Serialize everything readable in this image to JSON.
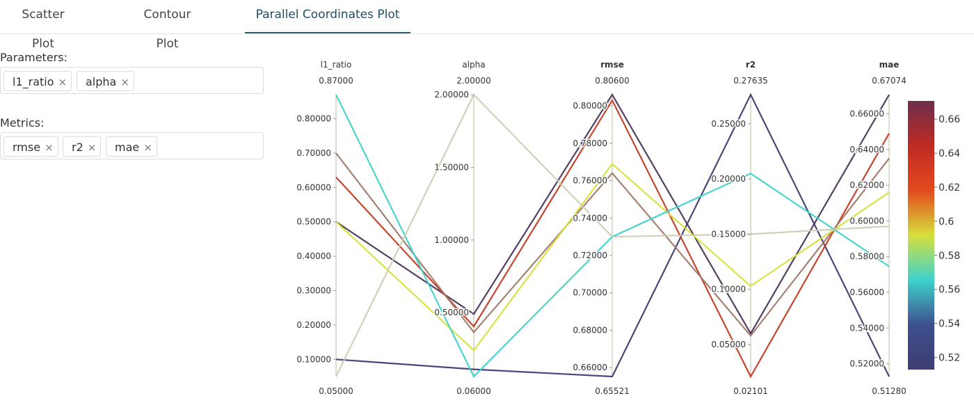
{
  "tabs": [
    {
      "label": "Scatter Plot",
      "active": false
    },
    {
      "label": "Contour Plot",
      "active": false
    },
    {
      "label": "Parallel Coordinates Plot",
      "active": true
    }
  ],
  "parameters": {
    "label": "Parameters:",
    "chips": [
      "l1_ratio",
      "alpha"
    ]
  },
  "metrics": {
    "label": "Metrics:",
    "chips": [
      "rmse",
      "r2",
      "mae"
    ]
  },
  "chart_data": {
    "type": "parallel_coordinates",
    "dimensions": [
      {
        "name": "l1_ratio",
        "bold": false,
        "range": [
          0.05,
          0.87
        ],
        "max_label": "0.87000",
        "min_label": "0.05000",
        "ticks": [
          "0.10000",
          "0.20000",
          "0.30000",
          "0.40000",
          "0.50000",
          "0.60000",
          "0.70000",
          "0.80000"
        ]
      },
      {
        "name": "alpha",
        "bold": false,
        "range": [
          0.06,
          2.0
        ],
        "max_label": "2.00000",
        "min_label": "0.06000",
        "ticks": [
          "0.50000",
          "1.00000",
          "1.50000",
          "2.00000"
        ]
      },
      {
        "name": "rmse",
        "bold": true,
        "range": [
          0.65521,
          0.806
        ],
        "max_label": "0.80600",
        "min_label": "0.65521",
        "ticks": [
          "0.66000",
          "0.68000",
          "0.70000",
          "0.72000",
          "0.74000",
          "0.76000",
          "0.78000",
          "0.80000"
        ]
      },
      {
        "name": "r2",
        "bold": true,
        "range": [
          0.02101,
          0.27635
        ],
        "max_label": "0.27635",
        "min_label": "0.02101",
        "ticks": [
          "0.05000",
          "0.10000",
          "0.15000",
          "0.20000",
          "0.25000"
        ]
      },
      {
        "name": "mae",
        "bold": true,
        "range": [
          0.5128,
          0.67074
        ],
        "max_label": "0.67074",
        "min_label": "0.51280",
        "ticks": [
          "0.52000",
          "0.54000",
          "0.56000",
          "0.58000",
          "0.60000",
          "0.62000",
          "0.64000",
          "0.66000"
        ]
      }
    ],
    "lines": [
      {
        "values": [
          0.1,
          0.11,
          0.65521,
          0.27635,
          0.5128
        ],
        "color": "#3f3d72"
      },
      {
        "values": [
          0.5,
          0.49,
          0.806,
          0.06,
          0.67074
        ],
        "color": "#4a3558"
      },
      {
        "values": [
          0.63,
          0.405,
          0.803,
          0.02101,
          0.649
        ],
        "color": "#c43a22"
      },
      {
        "values": [
          0.7,
          0.365,
          0.764,
          0.058,
          0.635
        ],
        "color": "#a07868"
      },
      {
        "values": [
          0.5,
          0.24,
          0.769,
          0.103,
          0.616
        ],
        "color": "#d6e03c"
      },
      {
        "values": [
          0.87,
          0.06,
          0.73,
          0.205,
          0.5745
        ],
        "color": "#3fd2cc"
      },
      {
        "values": [
          0.05,
          2.0,
          0.73,
          0.15,
          0.597
        ],
        "color": "#cfcdb4"
      }
    ],
    "colorbar": {
      "ticks": [
        "0.52",
        "0.54",
        "0.56",
        "0.58",
        "0.6",
        "0.62",
        "0.64",
        "0.66"
      ],
      "range": [
        0.5128,
        0.67074
      ],
      "stops": [
        "#3f3d72",
        "#3d4f8e",
        "#3fd2cc",
        "#d6e03c",
        "#e34a1e",
        "#c02a23",
        "#6b2f4a"
      ]
    }
  }
}
